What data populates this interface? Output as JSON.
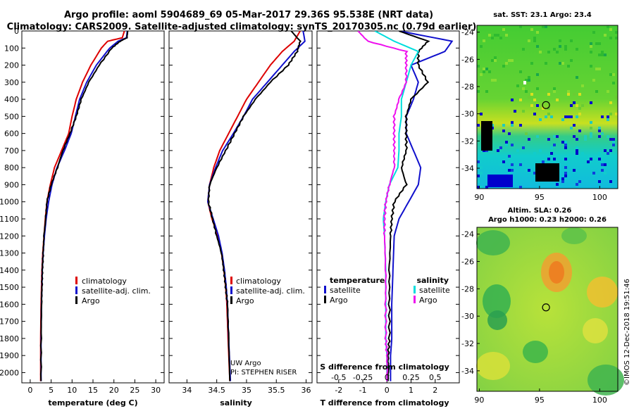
{
  "header": {
    "line1": "Argo profile: aoml 5904689_69 05-Mar-2017 29.36S 95.538E (NRT data)",
    "line2": "Climatology: CARS2009. Satellite-adjusted climatology: synTS_20170305.nc (0.79d earlier)"
  },
  "colors": {
    "climatology": "#dd0000",
    "satellite": "#1010cc",
    "argo": "#000000",
    "s_satellite": "#00dddd",
    "s_argo": "#ee11ee"
  },
  "chart_data": [
    {
      "type": "line",
      "id": "temperature",
      "xlabel": "temperature (deg C)",
      "ylabel": "pressure (dbar)",
      "xlim": [
        -2,
        32
      ],
      "ylim": [
        2060,
        0
      ],
      "xticks": [
        0,
        5,
        10,
        15,
        20,
        25,
        30
      ],
      "yticks": [
        0,
        100,
        200,
        300,
        400,
        500,
        600,
        700,
        800,
        900,
        1000,
        1100,
        1200,
        1300,
        1400,
        1500,
        1600,
        1700,
        1800,
        1900,
        2000
      ],
      "legend": [
        "climatology",
        "satellite-adj. clim.",
        "Argo"
      ],
      "series": [
        {
          "name": "climatology",
          "color": "#dd0000",
          "x": [
            22.5,
            22.0,
            18.5,
            17.0,
            14.5,
            12.5,
            11.0,
            10.0,
            9.2,
            7.5,
            5.8,
            4.8,
            4.0,
            3.6,
            3.3,
            3.0,
            2.8,
            2.7,
            2.6,
            2.5,
            2.5
          ],
          "y": [
            0,
            40,
            60,
            100,
            200,
            300,
            400,
            500,
            600,
            700,
            800,
            900,
            1000,
            1100,
            1200,
            1300,
            1400,
            1500,
            1600,
            1800,
            2050
          ]
        },
        {
          "name": "satellite-adj. clim.",
          "color": "#1010cc",
          "x": [
            23.2,
            23.0,
            21.0,
            19.0,
            15.8,
            13.5,
            11.8,
            10.8,
            9.8,
            8.2,
            6.4,
            5.2,
            4.4,
            3.8,
            3.4,
            3.1,
            2.9,
            2.8,
            2.7,
            2.6,
            2.6
          ],
          "y": [
            0,
            40,
            60,
            100,
            200,
            300,
            400,
            500,
            600,
            700,
            800,
            900,
            1000,
            1100,
            1200,
            1300,
            1400,
            1500,
            1600,
            1800,
            2050
          ]
        },
        {
          "name": "Argo",
          "color": "#000000",
          "x": [
            23.3,
            23.1,
            21.5,
            19.5,
            16.5,
            14.0,
            12.2,
            11.0,
            9.5,
            7.8,
            6.5,
            5.0,
            4.0,
            3.7,
            3.3,
            3.1,
            2.9,
            2.8,
            2.7,
            2.6,
            2.6
          ],
          "y": [
            0,
            40,
            60,
            100,
            200,
            300,
            400,
            500,
            600,
            700,
            800,
            900,
            1000,
            1100,
            1200,
            1300,
            1400,
            1500,
            1600,
            1800,
            2050
          ]
        }
      ]
    },
    {
      "type": "line",
      "id": "salinity",
      "xlabel": "salinity",
      "ylabel": "",
      "xlim": [
        33.7,
        36.1
      ],
      "ylim": [
        2060,
        0
      ],
      "xticks": [
        34,
        34.5,
        35,
        35.5,
        36
      ],
      "xticklabels": [
        "34",
        "34.5",
        "35",
        "35.5",
        "36"
      ],
      "legend": [
        "climatology",
        "satellite-adj. clim.",
        "Argo"
      ],
      "annotation": [
        "UW Argo",
        "PI: STEPHEN RISER"
      ],
      "series": [
        {
          "name": "climatology",
          "color": "#dd0000",
          "x": [
            35.9,
            35.8,
            35.6,
            35.4,
            35.2,
            35.0,
            34.85,
            34.7,
            34.55,
            34.45,
            34.38,
            34.35,
            34.42,
            34.52,
            34.58,
            34.62,
            34.65,
            34.67,
            34.69,
            34.72
          ],
          "y": [
            0,
            60,
            120,
            200,
            300,
            400,
            500,
            600,
            700,
            800,
            900,
            1000,
            1100,
            1200,
            1300,
            1400,
            1500,
            1600,
            1800,
            2050
          ]
        },
        {
          "name": "satellite-adj. clim.",
          "color": "#1010cc",
          "x": [
            35.95,
            35.98,
            35.8,
            35.6,
            35.35,
            35.1,
            34.95,
            34.78,
            34.6,
            34.48,
            34.38,
            34.35,
            34.44,
            34.53,
            34.59,
            34.63,
            34.66,
            34.68,
            34.7,
            34.73
          ],
          "y": [
            0,
            60,
            120,
            200,
            300,
            400,
            500,
            600,
            700,
            800,
            900,
            1000,
            1100,
            1200,
            1300,
            1400,
            1500,
            1600,
            1800,
            2050
          ]
        },
        {
          "name": "Argo",
          "color": "#000000",
          "x": [
            35.75,
            35.9,
            35.85,
            35.7,
            35.4,
            35.15,
            34.95,
            34.8,
            34.65,
            34.5,
            34.38,
            34.36,
            34.43,
            34.5,
            34.58,
            34.62,
            34.65,
            34.68,
            34.7,
            34.72
          ],
          "y": [
            0,
            60,
            120,
            200,
            300,
            400,
            500,
            600,
            700,
            800,
            900,
            1000,
            1100,
            1200,
            1300,
            1400,
            1500,
            1600,
            1800,
            2050
          ]
        }
      ]
    },
    {
      "type": "line",
      "id": "difference",
      "xlabel": "T difference from climatology",
      "x2label": "S difference from climatology",
      "xlim": [
        -2.9,
        3.0
      ],
      "ylim": [
        2060,
        0
      ],
      "xticks": [
        -2,
        -1,
        0,
        1,
        2
      ],
      "x2ticks": [
        -0.5,
        -0.25,
        0,
        0.25,
        0.5
      ],
      "x2ticklabels": [
        "-0.5",
        "-0.25",
        "0",
        "0.25",
        "0.5"
      ],
      "legend_temperature": [
        "temperature",
        "satellite",
        "Argo"
      ],
      "legend_salinity": [
        "salinity",
        "satellite",
        "Argo"
      ],
      "series": [
        {
          "name": "T satellite",
          "color": "#1010cc",
          "x": [
            0.5,
            2.7,
            2.4,
            1.0,
            1.3,
            1.1,
            0.8,
            0.8,
            1.1,
            1.4,
            1.3,
            0.9,
            0.5,
            0.3,
            0.25,
            0.2,
            0.2,
            0.15,
            0.15,
            0.15
          ],
          "y": [
            0,
            60,
            120,
            200,
            300,
            400,
            500,
            600,
            700,
            800,
            900,
            1000,
            1100,
            1200,
            1400,
            1600,
            1800,
            1900,
            2000,
            2050
          ]
        },
        {
          "name": "T Argo",
          "color": "#000000",
          "x": [
            0.5,
            1.7,
            1.3,
            1.3,
            1.7,
            1.0,
            0.8,
            0.8,
            0.8,
            0.6,
            0.8,
            0.3,
            0.2,
            0.15,
            0.1,
            0.1,
            0.1,
            0.05,
            0.05,
            0.05
          ],
          "y": [
            0,
            60,
            120,
            200,
            300,
            400,
            500,
            600,
            700,
            800,
            900,
            1000,
            1100,
            1200,
            1400,
            1600,
            1800,
            1900,
            2000,
            2050
          ]
        },
        {
          "name": "S satellite",
          "color": "#00dddd",
          "x": [
            -0.5,
            0.3,
            1.3,
            1.0,
            0.8,
            0.6,
            0.6,
            0.5,
            0.5,
            0.45,
            0.1,
            -0.05,
            -0.15,
            -0.1,
            -0.05,
            -0.05,
            -0.05,
            0.0,
            0.0,
            0.0
          ],
          "y": [
            0,
            60,
            120,
            200,
            300,
            400,
            500,
            600,
            700,
            800,
            900,
            1000,
            1100,
            1200,
            1400,
            1600,
            1800,
            1900,
            2000,
            2050
          ]
        },
        {
          "name": "S Argo",
          "color": "#ee11ee",
          "x": [
            -1.2,
            -0.8,
            0.8,
            0.8,
            0.8,
            0.5,
            0.3,
            0.3,
            0.3,
            0.3,
            0.1,
            -0.05,
            -0.1,
            -0.1,
            -0.05,
            -0.05,
            -0.05,
            0.0,
            0.0,
            0.0
          ],
          "y": [
            0,
            60,
            120,
            200,
            300,
            400,
            500,
            600,
            700,
            800,
            900,
            1000,
            1100,
            1200,
            1400,
            1600,
            1800,
            1900,
            2000,
            2050
          ]
        }
      ]
    },
    {
      "type": "heatmap",
      "id": "sst_map",
      "title": "sat. SST: 23.1 Argo: 23.4",
      "xticks": [
        90,
        95,
        100
      ],
      "yticks": [
        -24,
        -26,
        -28,
        -30,
        -32,
        -34
      ],
      "yticklabels": [
        "-24",
        "-26",
        "-28",
        "-30",
        "-32",
        "-34"
      ],
      "xlim": [
        89.8,
        101.5
      ],
      "ylim": [
        -35.5,
        -23.5
      ],
      "marker": {
        "lon": 95.538,
        "lat": -29.36
      }
    },
    {
      "type": "heatmap",
      "id": "sla_map",
      "title_line1": "Altim. SLA: 0.26",
      "title_line2": "Argo h1000: 0.23 h2000: 0.26",
      "xticks": [
        90,
        95,
        100
      ],
      "yticks": [
        -24,
        -26,
        -28,
        -30,
        -32,
        -34
      ],
      "yticklabels": [
        "-24",
        "-26",
        "-28",
        "-30",
        "-32",
        "-34"
      ],
      "xlim": [
        89.8,
        101.5
      ],
      "ylim": [
        -35.5,
        -23.5
      ],
      "marker": {
        "lon": 95.538,
        "lat": -29.36
      }
    }
  ],
  "footer": {
    "stamp": "©IMOS 12-Dec-2018 19:51:46"
  }
}
